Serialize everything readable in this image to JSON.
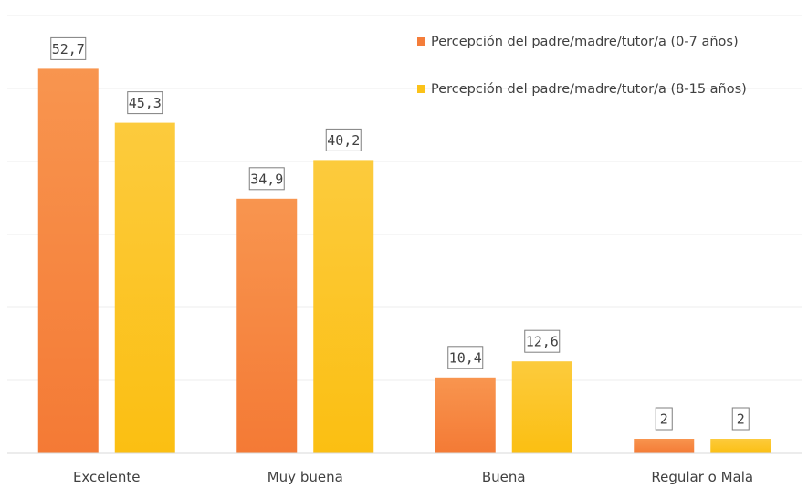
{
  "chart_data": {
    "type": "bar",
    "categories": [
      "Excelente",
      "Muy buena",
      "Buena",
      "Regular o Mala"
    ],
    "series": [
      {
        "name": "Percepción del padre/madre/tutor/a (0-7 años)",
        "values": [
          52.7,
          34.9,
          10.4,
          2
        ],
        "value_labels": [
          "52,7",
          "34,9",
          "10,4",
          "2"
        ],
        "color": "#f47d3a",
        "color_light": "#f8954f"
      },
      {
        "name": "Percepción del padre/madre/tutor/a (8-15 años)",
        "values": [
          45.3,
          40.2,
          12.6,
          2
        ],
        "value_labels": [
          "45,3",
          "40,2",
          "12,6",
          "2"
        ],
        "color": "#fbc219",
        "color_light": "#fccb3d"
      }
    ],
    "ylim": [
      0,
      60
    ],
    "grid": true,
    "legend_position": "top-right"
  }
}
